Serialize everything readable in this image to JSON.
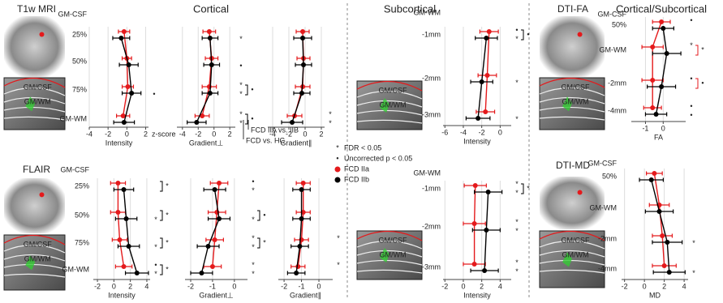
{
  "images": [
    {
      "label": "T1w MRI",
      "regions": [
        "GM/CSF",
        "GM/WM"
      ]
    },
    {
      "regions": [
        "GM/CSF",
        "GM/WM"
      ]
    },
    {
      "label": "DTI-FA",
      "regions": [
        "GM/CSF",
        "GM/WM"
      ]
    },
    {
      "label": "FLAIR",
      "regions": [
        "GM/CSF",
        "GM/WM"
      ]
    },
    {
      "regions": [
        "GM/CSF",
        "GM/WM"
      ]
    },
    {
      "label": "DTI-MD",
      "regions": [
        "GM/CSF",
        "GM/WM"
      ]
    }
  ],
  "legend": [
    {
      "marker": "*",
      "label": "FDR < 0.05"
    },
    {
      "marker": "•",
      "label": "Uncorrected p < 0.05"
    },
    {
      "label": "FCD IIa",
      "color": "#e41a1c"
    },
    {
      "label": "FCD IIb",
      "color": "#000000"
    }
  ],
  "notes": [
    "FCD IIA vs. IIB",
    "FCD vs. HC"
  ],
  "chart_data": [
    {
      "type": "dot",
      "categories": [
        "GM-CSF",
        "25%",
        "50%",
        "75%",
        "GM-WM"
      ],
      "xlabel": "Intensity",
      "unit": "z-score",
      "xlim": [
        -4,
        2.3
      ],
      "xticks": [
        -4,
        -2,
        0,
        2
      ],
      "grid": true,
      "series": [
        {
          "color": "#e41a1c",
          "values": [
            null,
            -0.3,
            0,
            0.1,
            -0.4
          ],
          "errors": [
            null,
            0.6,
            0.5,
            0.6,
            0.7
          ]
        },
        {
          "color": "#000000",
          "values": [
            null,
            -0.6,
            0.2,
            0.5,
            -0.3
          ],
          "errors": [
            null,
            0.9,
            1.0,
            1.0,
            1.1
          ],
          "sig": [
            null,
            null,
            null,
            "•",
            null
          ]
        }
      ]
    },
    {
      "type": "dot",
      "title": "Cortical",
      "xlabel": "Gradient⊥",
      "xlim": [
        -4.7,
        2.7
      ],
      "xticks": [
        -4,
        -2,
        0,
        2
      ],
      "grid": true,
      "series": [
        {
          "color": "#e41a1c",
          "values": [
            null,
            -0.6,
            -0.3,
            -0.6,
            -1.5
          ],
          "errors": [
            null,
            0.8,
            0.8,
            0.9,
            0.9
          ],
          "sig": [
            null,
            null,
            null,
            "*",
            "*"
          ]
        },
        {
          "color": "#000000",
          "values": [
            null,
            -0.5,
            -0.3,
            -0.5,
            -2.2
          ],
          "errors": [
            null,
            1.0,
            1.0,
            1.0,
            1.2
          ],
          "sig": [
            null,
            "*",
            "•",
            "*",
            "*"
          ]
        }
      ],
      "between": [
        null,
        null,
        null,
        "•",
        "•"
      ]
    },
    {
      "type": "dot",
      "xlabel": "Gradient∥",
      "xlim": [
        -4.6,
        2.4
      ],
      "xticks": [
        -4,
        -2,
        0,
        2
      ],
      "grid": true,
      "series": [
        {
          "color": "#e41a1c",
          "values": [
            null,
            -0.3,
            -0.2,
            -0.3,
            -1.3
          ],
          "errors": [
            null,
            0.8,
            0.8,
            0.9,
            0.9
          ],
          "sig": [
            null,
            null,
            null,
            null,
            "*"
          ]
        },
        {
          "color": "#000000",
          "values": [
            null,
            -0.3,
            -0.2,
            -0.4,
            -1.6
          ],
          "errors": [
            null,
            1.1,
            1.0,
            1.0,
            1.3
          ],
          "sig": [
            null,
            null,
            null,
            null,
            "*"
          ]
        }
      ]
    },
    {
      "type": "dot",
      "title": "Subcortical",
      "categories": [
        "GM-WM",
        "-1mm",
        "-2mm",
        "-3mm"
      ],
      "xlabel": "Intensity",
      "xlim": [
        -6.2,
        1.2
      ],
      "xticks": [
        -6,
        -4,
        -2,
        0
      ],
      "grid": true,
      "series": [
        {
          "color": "#e41a1c",
          "values": [
            null,
            -1.2,
            -1.4,
            -1.6
          ],
          "errors": [
            null,
            1.0,
            1.0,
            1.0
          ],
          "sig": [
            null,
            "•",
            null,
            null
          ]
        },
        {
          "color": "#000000",
          "values": [
            null,
            -1.5,
            -2.0,
            -2.4
          ],
          "errors": [
            null,
            1.2,
            1.2,
            1.3
          ],
          "sig": [
            null,
            "*",
            "*",
            "*"
          ]
        }
      ],
      "between": [
        null,
        "•",
        null,
        null
      ]
    },
    {
      "type": "dot",
      "title": "Cortical/Subcortical",
      "categories": [
        "GM-CSF",
        "50%",
        "GM-WM",
        "-2mm",
        "-4mm"
      ],
      "xlabel": "FA",
      "xlim": [
        -1.8,
        1.27
      ],
      "xticks": [
        -1,
        0
      ],
      "grid": true,
      "series": [
        {
          "color": "#e41a1c",
          "values": [
            null,
            -0.1,
            -0.6,
            -0.6,
            -0.6
          ],
          "errors": [
            null,
            0.5,
            0.6,
            0.6,
            0.5
          ],
          "sig": [
            null,
            "•",
            "*",
            "•",
            "•"
          ]
        },
        {
          "color": "#000000",
          "values": [
            null,
            0.0,
            0.2,
            -0.1,
            -0.4
          ],
          "errors": [
            null,
            0.6,
            0.8,
            0.8,
            0.6
          ],
          "sig": [
            null,
            null,
            null,
            null,
            "•"
          ]
        }
      ],
      "between": [
        null,
        null,
        "*",
        "•",
        null
      ],
      "between_color": "#e41a1c"
    },
    {
      "type": "dot",
      "categories": [
        "GM-CSF",
        "25%",
        "50%",
        "75%",
        "GM-WM"
      ],
      "xlabel": "Intensity",
      "xlim": [
        -2.5,
        4.4
      ],
      "xticks": [
        -2,
        0,
        2,
        4
      ],
      "grid": true,
      "series": [
        {
          "color": "#e41a1c",
          "values": [
            null,
            0.5,
            0.5,
            0.7,
            1.2
          ],
          "errors": [
            null,
            0.9,
            0.9,
            0.9,
            1.0
          ],
          "sig": [
            null,
            null,
            null,
            null,
            "•"
          ]
        },
        {
          "color": "#000000",
          "values": [
            null,
            1.2,
            1.5,
            1.8,
            2.8
          ],
          "errors": [
            null,
            1.2,
            1.3,
            1.3,
            1.4
          ],
          "sig": [
            null,
            null,
            "*",
            "*",
            "*"
          ]
        }
      ],
      "between": [
        null,
        "*",
        "*",
        "*",
        "*"
      ]
    },
    {
      "type": "dot",
      "xlabel": "Gradient⊥",
      "xlim": [
        -2.26,
        0.6
      ],
      "xticks": [
        -2,
        -1,
        0
      ],
      "grid": true,
      "series": [
        {
          "color": "#e41a1c",
          "values": [
            null,
            -0.7,
            -0.8,
            -0.9,
            -1.0
          ],
          "errors": [
            null,
            0.4,
            0.4,
            0.4,
            0.4
          ],
          "sig": [
            null,
            "•",
            null,
            "*",
            "*"
          ]
        },
        {
          "color": "#000000",
          "values": [
            null,
            -0.9,
            -0.7,
            -1.2,
            -1.5
          ],
          "errors": [
            null,
            0.5,
            0.5,
            0.5,
            0.5
          ],
          "sig": [
            null,
            "*",
            "*",
            "*",
            "*"
          ]
        }
      ],
      "between": [
        null,
        null,
        "•",
        "*",
        null
      ]
    },
    {
      "type": "dot",
      "xlabel": "Gradient∥",
      "xlim": [
        -2.33,
        0.79
      ],
      "xticks": [
        -2,
        -1,
        0
      ],
      "grid": true,
      "series": [
        {
          "color": "#e41a1c",
          "values": [
            null,
            -0.9,
            -0.9,
            -1.0,
            -1.2
          ],
          "errors": [
            null,
            0.4,
            0.4,
            0.4,
            0.4
          ],
          "sig": [
            null,
            null,
            null,
            "*",
            "*"
          ]
        },
        {
          "color": "#000000",
          "values": [
            null,
            -1.0,
            -1.0,
            -1.1,
            -1.3
          ],
          "errors": [
            null,
            0.5,
            0.5,
            0.5,
            0.5
          ]
        }
      ]
    },
    {
      "type": "dot",
      "categories": [
        "GM-WM",
        "-1mm",
        "-2mm",
        "-3mm"
      ],
      "xlabel": "Intensity",
      "xlim": [
        -2.2,
        5.2
      ],
      "xticks": [
        -2,
        0,
        2,
        4
      ],
      "grid": true,
      "series": [
        {
          "color": "#e41a1c",
          "values": [
            null,
            1.3,
            1.2,
            1.2
          ],
          "errors": [
            null,
            1.2,
            1.2,
            1.2
          ],
          "sig": [
            null,
            "*",
            "*",
            "*"
          ]
        },
        {
          "color": "#000000",
          "values": [
            null,
            2.7,
            2.5,
            2.3
          ],
          "errors": [
            null,
            1.5,
            1.5,
            1.5
          ],
          "sig": [
            null,
            "*",
            "*",
            "*"
          ]
        }
      ],
      "between": [
        null,
        "*",
        null,
        null
      ]
    },
    {
      "type": "dot",
      "categories": [
        "GM-CSF",
        "50%",
        "GM-WM",
        "-2mm",
        "-4mm"
      ],
      "xlabel": "MD",
      "xlim": [
        -2.3,
        4.4
      ],
      "xticks": [
        -2,
        0,
        2,
        4
      ],
      "grid": true,
      "series": [
        {
          "color": "#e41a1c",
          "values": [
            null,
            1.0,
            1.5,
            1.8,
            2.0
          ],
          "errors": [
            null,
            0.8,
            1.0,
            1.0,
            1.2
          ]
        },
        {
          "color": "#000000",
          "values": [
            null,
            0.7,
            1.5,
            2.3,
            2.5
          ],
          "errors": [
            null,
            1.2,
            1.4,
            1.5,
            1.6
          ],
          "sig": [
            null,
            null,
            null,
            "*",
            "*"
          ]
        }
      ]
    }
  ]
}
